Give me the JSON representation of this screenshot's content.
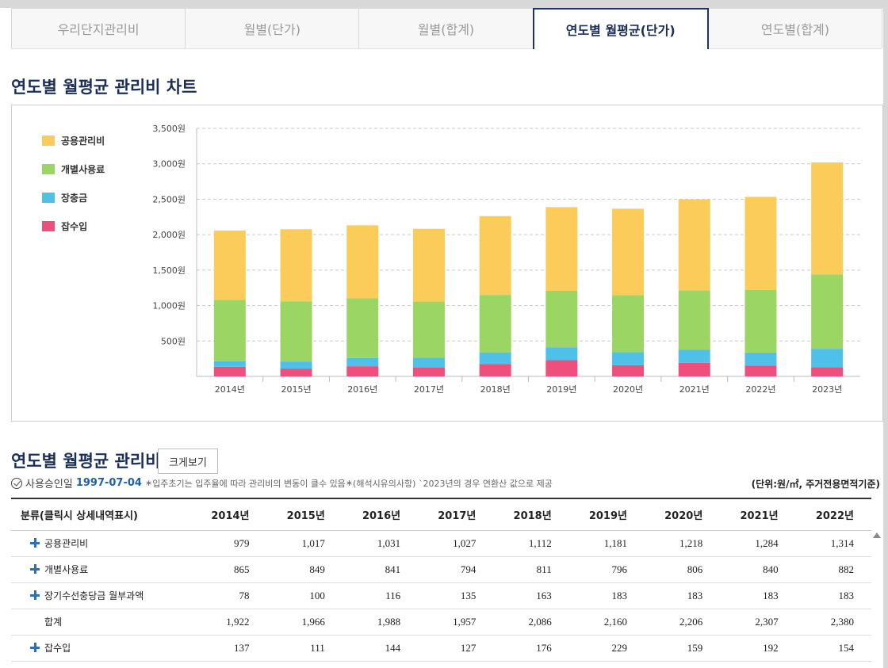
{
  "tabs": [
    {
      "label": "우리단지관리비",
      "active": false
    },
    {
      "label": "월별(단가)",
      "active": false
    },
    {
      "label": "월별(합계)",
      "active": false
    },
    {
      "label": "연도별 월평균(단가)",
      "active": true
    },
    {
      "label": "연도별(합계)",
      "active": false
    }
  ],
  "chart_section_title": "연도별 월평균 관리비 차트",
  "chart_data": {
    "type": "bar",
    "stacked": true,
    "categories": [
      "2014년",
      "2015년",
      "2016년",
      "2017년",
      "2018년",
      "2019년",
      "2020년",
      "2021년",
      "2022년",
      "2023년"
    ],
    "series": [
      {
        "name": "잡수입",
        "color": "#ef4f7d",
        "values": [
          137,
          111,
          144,
          127,
          176,
          229,
          159,
          192,
          154,
          130
        ]
      },
      {
        "name": "장충금",
        "color": "#4fc0e8",
        "values": [
          78,
          100,
          116,
          135,
          163,
          183,
          183,
          183,
          183,
          260
        ]
      },
      {
        "name": "개별사용료",
        "color": "#9bd665",
        "values": [
          865,
          849,
          841,
          794,
          811,
          796,
          806,
          840,
          882,
          1050
        ]
      },
      {
        "name": "공용관리비",
        "color": "#fccc5a",
        "values": [
          979,
          1017,
          1031,
          1027,
          1112,
          1181,
          1218,
          1284,
          1314,
          1580
        ]
      }
    ],
    "y_ticks": [
      "500원",
      "1,000원",
      "1,500원",
      "2,000원",
      "2,500원",
      "3,000원",
      "3,500원"
    ],
    "ylim": [
      0,
      3500
    ],
    "grid": true,
    "legend_position": "left"
  },
  "table_section_title": "연도별 월평균 관리비",
  "zoom_button_label": "크게보기",
  "notice": {
    "approve_label": "사용승인일",
    "approve_date": "1997-07-04",
    "text1": "입주초기는 입주율에 따라 관리비의 변동이 클수 있음",
    "text2": "(해석시유의사항) `2023년의 경우 연환산 값으로 제공",
    "star": "∗"
  },
  "unit_label": "(단위:원/㎡, 주거전용면적기준)",
  "table": {
    "headers": [
      "분류(클릭시 상세내역표시)",
      "2014년",
      "2015년",
      "2016년",
      "2017년",
      "2018년",
      "2019년",
      "2020년",
      "2021년",
      "2022년"
    ],
    "rows": [
      {
        "label": "공용관리비",
        "plus": true,
        "values": [
          "979",
          "1,017",
          "1,031",
          "1,027",
          "1,112",
          "1,181",
          "1,218",
          "1,284",
          "1,314"
        ]
      },
      {
        "label": "개별사용료",
        "plus": true,
        "values": [
          "865",
          "849",
          "841",
          "794",
          "811",
          "796",
          "806",
          "840",
          "882"
        ]
      },
      {
        "label": "장기수선충당금 월부과액",
        "plus": true,
        "values": [
          "78",
          "100",
          "116",
          "135",
          "163",
          "183",
          "183",
          "183",
          "183"
        ]
      },
      {
        "label": "합계",
        "plus": false,
        "values": [
          "1,922",
          "1,966",
          "1,988",
          "1,957",
          "2,086",
          "2,160",
          "2,206",
          "2,307",
          "2,380"
        ]
      },
      {
        "label": "잡수입",
        "plus": true,
        "values": [
          "137",
          "111",
          "144",
          "127",
          "176",
          "229",
          "159",
          "192",
          "154"
        ]
      }
    ]
  }
}
